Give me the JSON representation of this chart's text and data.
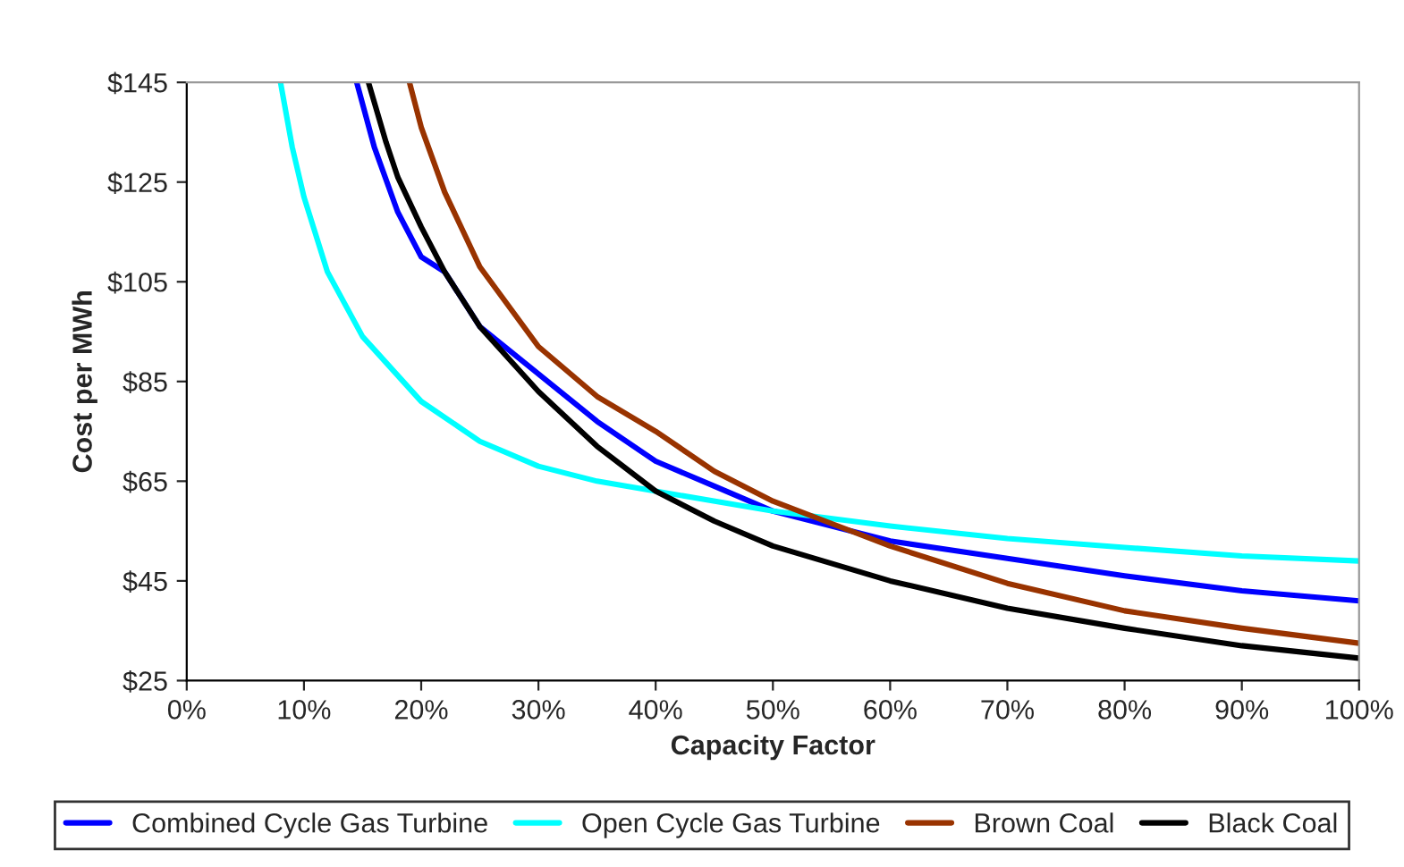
{
  "chart_data": {
    "type": "line",
    "xlabel": "Capacity Factor",
    "ylabel": "Cost per MWh",
    "xlim": [
      0,
      100
    ],
    "xticks": [
      {
        "value": 0,
        "label": "0%"
      },
      {
        "value": 10,
        "label": "10%"
      },
      {
        "value": 20,
        "label": "20%"
      },
      {
        "value": 30,
        "label": "30%"
      },
      {
        "value": 40,
        "label": "40%"
      },
      {
        "value": 50,
        "label": "50%"
      },
      {
        "value": 60,
        "label": "60%"
      },
      {
        "value": 70,
        "label": "70%"
      },
      {
        "value": 80,
        "label": "80%"
      },
      {
        "value": 90,
        "label": "90%"
      },
      {
        "value": 100,
        "label": "100%"
      }
    ],
    "ylim": [
      25,
      145
    ],
    "yticks": [
      {
        "value": 25,
        "label": "$25"
      },
      {
        "value": 45,
        "label": "$45"
      },
      {
        "value": 65,
        "label": "$65"
      },
      {
        "value": 85,
        "label": "$85"
      },
      {
        "value": 105,
        "label": "$105"
      },
      {
        "value": 125,
        "label": "$125"
      },
      {
        "value": 145,
        "label": "$145"
      }
    ],
    "grid": false,
    "legend": "bottom",
    "marker": "none",
    "line_style": "solid",
    "series": [
      {
        "name": "Combined Cycle Gas Turbine",
        "color": "#0000ff",
        "x": [
          14.5,
          16,
          18,
          20,
          22,
          25,
          30,
          35,
          40,
          45,
          50,
          60,
          70,
          80,
          90,
          100
        ],
        "values": [
          145,
          132,
          119,
          110,
          107,
          96,
          86.5,
          77,
          69,
          64,
          59,
          53,
          49.5,
          46,
          43,
          41
        ]
      },
      {
        "name": "Open Cycle Gas Turbine",
        "color": "#00ffff",
        "x": [
          8,
          9,
          10,
          12,
          15,
          20,
          25,
          30,
          35,
          40,
          50,
          60,
          70,
          80,
          90,
          100
        ],
        "values": [
          145,
          132,
          122,
          107,
          94,
          81,
          73,
          68,
          65,
          63,
          59,
          56,
          53.5,
          51.7,
          50,
          49
        ]
      },
      {
        "name": "Brown Coal",
        "color": "#993300",
        "x": [
          19,
          20,
          22,
          25,
          30,
          35,
          40,
          45,
          50,
          55,
          60,
          70,
          80,
          90,
          100
        ],
        "values": [
          145,
          136,
          123,
          108,
          92,
          82,
          75,
          67,
          61,
          56.5,
          52,
          44.5,
          39,
          35.5,
          32.5
        ]
      },
      {
        "name": "Black Coal",
        "color": "#000000",
        "x": [
          15.5,
          17,
          18,
          20,
          22,
          25,
          30,
          35,
          40,
          45,
          50,
          60,
          70,
          80,
          90,
          100
        ],
        "values": [
          145,
          133,
          126,
          116,
          107,
          96,
          83,
          72,
          63,
          57,
          52,
          45,
          39.5,
          35.5,
          32,
          29.5
        ]
      }
    ]
  }
}
